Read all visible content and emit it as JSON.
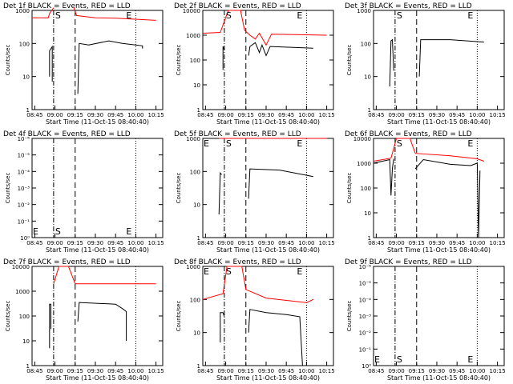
{
  "panels": [
    {
      "title": "Det 1f BLACK = Events, RED = LLD",
      "ylabel": "Counts/sec",
      "xlabel": "Start Time (11-Oct-15 08:40:40)",
      "scale": "log",
      "yticks": [
        "1",
        "10",
        "100",
        "1000"
      ],
      "markers": [
        "S",
        "E"
      ],
      "marker_pos": "top"
    },
    {
      "title": "Det 2f BLACK = Events, RED = LLD",
      "ylabel": "Counts/sec",
      "xlabel": "Start Time (11-Oct-15 08:40:40)",
      "scale": "log",
      "yticks": [
        "1",
        "10",
        "100",
        "1000",
        "10000"
      ],
      "markers": [
        "S",
        "E"
      ],
      "marker_pos": "top"
    },
    {
      "title": "Det 3f BLACK = Events, RED = LLD",
      "ylabel": "Counts/sec",
      "xlabel": "Start Time (11-Oct-15 08:40:40)",
      "scale": "log",
      "yticks": [
        "1",
        "10",
        "100",
        "1000"
      ],
      "markers": [
        "S",
        "E"
      ],
      "marker_pos": "top"
    },
    {
      "title": "Det 4f BLACK = Events, RED = LLD",
      "ylabel": "Counts/sec",
      "xlabel": "Start Time (11-Oct-15 08:40:40)",
      "scale": "exp",
      "yticks": [
        "10⁰",
        "10⁻¹",
        "10⁻²",
        "10⁻³",
        "10⁻⁴",
        "10⁻⁵",
        "10⁻⁶"
      ],
      "markers": [
        "E",
        "S",
        "E"
      ],
      "marker_pos": "bottom"
    },
    {
      "title": "Det 5f BLACK = Events, RED = LLD",
      "ylabel": "Counts/sec",
      "xlabel": "Start Time (11-Oct-15 08:40:40)",
      "scale": "log",
      "yticks": [
        "1",
        "10",
        "100",
        "1000"
      ],
      "markers": [
        "E",
        "S",
        "E"
      ],
      "marker_pos": "top"
    },
    {
      "title": "Det 6f BLACK = Events, RED = LLD",
      "ylabel": "Counts/sec",
      "xlabel": "Start Time (11-Oct-15 08:40:40)",
      "scale": "log",
      "yticks": [
        "1",
        "10",
        "100",
        "1000",
        "10000"
      ],
      "markers": [
        "S",
        "E"
      ],
      "marker_pos": "top"
    },
    {
      "title": "Det 7f BLACK = Events, RED = LLD",
      "ylabel": "Counts/sec",
      "xlabel": "Start Time (11-Oct-15 08:40:40)",
      "scale": "log",
      "yticks": [
        "1",
        "10",
        "100",
        "1000",
        "10000"
      ],
      "markers": [],
      "marker_pos": "top"
    },
    {
      "title": "Det 8f BLACK = Events, RED = LLD",
      "ylabel": "Counts/sec",
      "xlabel": "Start Time (11-Oct-15 08:40:40)",
      "scale": "log",
      "yticks": [
        "1",
        "10",
        "100",
        "1000"
      ],
      "markers": [
        "E",
        "S",
        "E"
      ],
      "marker_pos": "top"
    },
    {
      "title": "Det 9f BLACK = Events, RED = LLD",
      "ylabel": "Counts/sec",
      "xlabel": "Start Time (11-Oct-15 08:40:40)",
      "scale": "exp",
      "yticks": [
        "10⁰",
        "10⁻¹",
        "10⁻²",
        "10⁻³",
        "10⁻⁴",
        "10⁻⁵",
        "10⁻⁶"
      ],
      "markers": [
        "E",
        "S",
        "E"
      ],
      "marker_pos": "bottom"
    }
  ],
  "chart_data": [
    {
      "type": "line",
      "title": "Det 1f BLACK = Events, RED = LLD",
      "ylabel": "Counts/sec",
      "xlabel": "Start Time (11-Oct-15 08:40:40)",
      "x_tick_labels": [
        "08:45",
        "09:00",
        "09:15",
        "09:30",
        "09:45",
        "10:00",
        "10:15"
      ],
      "ylim": [
        1,
        1000
      ],
      "y_scale": "log",
      "vlines": {
        "S": "08:59",
        "end_shaded": "09:15",
        "E": "10:00"
      },
      "series": [
        {
          "name": "Events",
          "color": "#000000",
          "segments": [
            [
              [
                "08:56",
                10
              ],
              [
                "08:56",
                60
              ],
              [
                "08:58",
                80
              ],
              [
                "08:58",
                7
              ]
            ],
            [
              [
                "09:17",
                3
              ],
              [
                "09:18",
                100
              ],
              [
                "09:25",
                90
              ],
              [
                "09:40",
                120
              ],
              [
                "09:50",
                100
              ],
              [
                "10:05",
                85
              ],
              [
                "10:05",
                70
              ]
            ]
          ]
        },
        {
          "name": "LLD",
          "color": "#ff0000",
          "segments": [
            [
              [
                "08:43",
                600
              ],
              [
                "08:55",
                600
              ],
              [
                "08:56",
                800
              ],
              [
                "08:59",
                1200
              ]
            ],
            [
              [
                "09:14",
                1200
              ],
              [
                "09:16",
                700
              ],
              [
                "09:30",
                600
              ],
              [
                "09:45",
                580
              ],
              [
                "10:15",
                500
              ]
            ]
          ]
        }
      ]
    },
    {
      "type": "line",
      "title": "Det 2f BLACK = Events, RED = LLD",
      "ylabel": "Counts/sec",
      "xlabel": "Start Time (11-Oct-15 08:40:40)",
      "x_tick_labels": [
        "08:45",
        "09:00",
        "09:15",
        "09:30",
        "09:45",
        "10:00",
        "10:15"
      ],
      "ylim": [
        1,
        10000
      ],
      "y_scale": "log",
      "vlines": {
        "S": "08:59",
        "end_shaded": "09:15",
        "E": "10:00"
      },
      "series": [
        {
          "name": "Events",
          "color": "#000000",
          "segments": [
            [
              [
                "08:58",
                40
              ],
              [
                "08:58",
                350
              ],
              [
                "08:59",
                250
              ]
            ],
            [
              [
                "09:17",
                150
              ],
              [
                "09:18",
                350
              ],
              [
                "09:22",
                500
              ],
              [
                "09:25",
                200
              ],
              [
                "09:27",
                400
              ],
              [
                "09:30",
                150
              ],
              [
                "09:33",
                350
              ],
              [
                "10:05",
                300
              ]
            ]
          ]
        },
        {
          "name": "LLD",
          "color": "#ff0000",
          "segments": [
            [
              [
                "08:43",
                1200
              ],
              [
                "08:56",
                1300
              ],
              [
                "09:02",
                10000
              ],
              [
                "09:11",
                10000
              ],
              [
                "09:14",
                1600
              ],
              [
                "09:18",
                1000
              ],
              [
                "09:22",
                700
              ],
              [
                "09:25",
                1200
              ],
              [
                "09:30",
                400
              ],
              [
                "09:34",
                1100
              ],
              [
                "10:15",
                1000
              ]
            ]
          ]
        }
      ]
    },
    {
      "type": "line",
      "title": "Det 3f BLACK = Events, RED = LLD",
      "ylabel": "Counts/sec",
      "xlabel": "Start Time (11-Oct-15 08:40:40)",
      "x_tick_labels": [
        "08:45",
        "09:00",
        "09:15",
        "09:30",
        "09:45",
        "10:00",
        "10:15"
      ],
      "ylim": [
        1,
        1000
      ],
      "y_scale": "log",
      "vlines": {
        "S": "08:59",
        "end_shaded": "09:15",
        "E": "10:00"
      },
      "series": [
        {
          "name": "Events",
          "color": "#000000",
          "segments": [
            [
              [
                "08:55",
                5
              ],
              [
                "08:56",
                120
              ],
              [
                "08:57",
                130
              ],
              [
                "08:58",
                15
              ]
            ],
            [
              [
                "09:17",
                10
              ],
              [
                "09:18",
                130
              ],
              [
                "09:40",
                130
              ],
              [
                "10:05",
                110
              ]
            ]
          ]
        }
      ]
    },
    {
      "type": "line",
      "title": "Det 4f BLACK = Events, RED = LLD",
      "ylabel": "Counts/sec",
      "xlabel": "Start Time (11-Oct-15 08:40:40)",
      "x_tick_labels": [
        "08:45",
        "09:00",
        "09:15",
        "09:30",
        "09:45",
        "10:00",
        "10:15"
      ],
      "y_scale": "log",
      "vlines": {
        "S": "08:59",
        "end_shaded": "09:15",
        "E": "10:00"
      },
      "series": []
    },
    {
      "type": "line",
      "title": "Det 5f BLACK = Events, RED = LLD",
      "ylabel": "Counts/sec",
      "xlabel": "Start Time (11-Oct-15 08:40:40)",
      "x_tick_labels": [
        "08:45",
        "09:00",
        "09:15",
        "09:30",
        "09:45",
        "10:00",
        "10:15"
      ],
      "ylim": [
        1,
        1000
      ],
      "y_scale": "log",
      "vlines": {
        "S": "08:59",
        "end_shaded": "09:15",
        "E": "10:00"
      },
      "series": [
        {
          "name": "Events",
          "color": "#000000",
          "segments": [
            [
              [
                "08:55",
                5
              ],
              [
                "08:56",
                90
              ],
              [
                "08:57",
                80
              ]
            ],
            [
              [
                "09:17",
                15
              ],
              [
                "09:18",
                120
              ],
              [
                "09:40",
                110
              ],
              [
                "10:05",
                70
              ]
            ]
          ]
        },
        {
          "name": "LLD",
          "color": "#ff0000",
          "segments": [
            [
              [
                "08:55",
                1000
              ],
              [
                "10:15",
                1000
              ]
            ]
          ]
        }
      ]
    },
    {
      "type": "line",
      "title": "Det 6f BLACK = Events, RED = LLD",
      "ylabel": "Counts/sec",
      "xlabel": "Start Time (11-Oct-15 08:40:40)",
      "x_tick_labels": [
        "08:45",
        "09:00",
        "09:15",
        "09:30",
        "09:45",
        "10:00",
        "10:15"
      ],
      "ylim": [
        1,
        10000
      ],
      "y_scale": "log",
      "vlines": {
        "S": "08:59",
        "end_shaded": "09:15",
        "E": "10:00"
      },
      "series": [
        {
          "name": "Events",
          "color": "#000000",
          "segments": [
            [
              [
                "08:43",
                1000
              ],
              [
                "08:55",
                1400
              ],
              [
                "08:56",
                50
              ],
              [
                "08:57",
                600
              ],
              [
                "08:58",
                1500
              ]
            ],
            [
              [
                "09:14",
                600
              ],
              [
                "09:20",
                1400
              ],
              [
                "09:40",
                900
              ],
              [
                "09:55",
                800
              ],
              [
                "10:00",
                1000
              ],
              [
                "10:01",
                1
              ],
              [
                "10:02",
                500
              ]
            ]
          ]
        },
        {
          "name": "LLD",
          "color": "#ff0000",
          "segments": [
            [
              [
                "08:43",
                1200
              ],
              [
                "08:56",
                1600
              ],
              [
                "09:00",
                10000
              ],
              [
                "09:10",
                10000
              ],
              [
                "09:14",
                2500
              ],
              [
                "09:40",
                2000
              ],
              [
                "10:00",
                1500
              ],
              [
                "10:05",
                1200
              ]
            ]
          ]
        }
      ]
    },
    {
      "type": "line",
      "title": "Det 7f BLACK = Events, RED = LLD",
      "ylabel": "Counts/sec",
      "xlabel": "Start Time (11-Oct-15 08:40:40)",
      "x_tick_labels": [
        "08:45",
        "09:00",
        "09:15",
        "09:30",
        "09:45",
        "10:00",
        "10:15"
      ],
      "ylim": [
        1,
        10000
      ],
      "y_scale": "log",
      "vlines": {
        "S": "08:59",
        "end_shaded": "09:15",
        "E": "10:00"
      },
      "series": [
        {
          "name": "Events",
          "color": "#000000",
          "segments": [
            [
              [
                "08:56",
                5
              ],
              [
                "08:56",
                300
              ],
              [
                "08:57",
                300
              ],
              [
                "08:57",
                30
              ]
            ],
            [
              [
                "09:17",
                60
              ],
              [
                "09:18",
                350
              ],
              [
                "09:45",
                300
              ],
              [
                "09:50",
                200
              ],
              [
                "09:53",
                150
              ],
              [
                "09:53",
                10
              ]
            ]
          ]
        },
        {
          "name": "LLD",
          "color": "#ff0000",
          "segments": [
            [
              [
                "08:59",
                2000
              ],
              [
                "09:03",
                10000
              ],
              [
                "09:10",
                10000
              ],
              [
                "09:15",
                2000
              ],
              [
                "10:15",
                2000
              ]
            ]
          ]
        }
      ]
    },
    {
      "type": "line",
      "title": "Det 8f BLACK = Events, RED = LLD",
      "ylabel": "Counts/sec",
      "xlabel": "Start Time (11-Oct-15 08:40:40)",
      "x_tick_labels": [
        "08:45",
        "09:00",
        "09:15",
        "09:30",
        "09:45",
        "10:00",
        "10:15"
      ],
      "ylim": [
        1,
        1000
      ],
      "y_scale": "log",
      "vlines": {
        "S": "08:59",
        "end_shaded": "09:15",
        "E": "10:00"
      },
      "series": [
        {
          "name": "Events",
          "color": "#000000",
          "segments": [
            [
              [
                "08:56",
                5
              ],
              [
                "08:56",
                40
              ],
              [
                "08:58",
                40
              ],
              [
                "08:59",
                30
              ]
            ],
            [
              [
                "09:17",
                10
              ],
              [
                "09:18",
                50
              ],
              [
                "09:30",
                40
              ],
              [
                "09:45",
                35
              ],
              [
                "09:55",
                30
              ],
              [
                "09:57",
                1
              ]
            ]
          ]
        },
        {
          "name": "LLD",
          "color": "#ff0000",
          "segments": [
            [
              [
                "08:43",
                100
              ],
              [
                "08:58",
                150
              ],
              [
                "09:01",
                1000
              ],
              [
                "09:12",
                1000
              ],
              [
                "09:15",
                200
              ],
              [
                "09:30",
                110
              ],
              [
                "10:00",
                80
              ],
              [
                "10:05",
                100
              ]
            ]
          ]
        }
      ]
    },
    {
      "type": "line",
      "title": "Det 9f BLACK = Events, RED = LLD",
      "ylabel": "Counts/sec",
      "xlabel": "Start Time (11-Oct-15 08:40:40)",
      "x_tick_labels": [
        "08:45",
        "09:00",
        "09:15",
        "09:30",
        "09:45",
        "10:00",
        "10:15"
      ],
      "y_scale": "log",
      "vlines": {
        "S": "08:59",
        "end_shaded": "09:15",
        "E": "10:00"
      },
      "series": []
    }
  ]
}
